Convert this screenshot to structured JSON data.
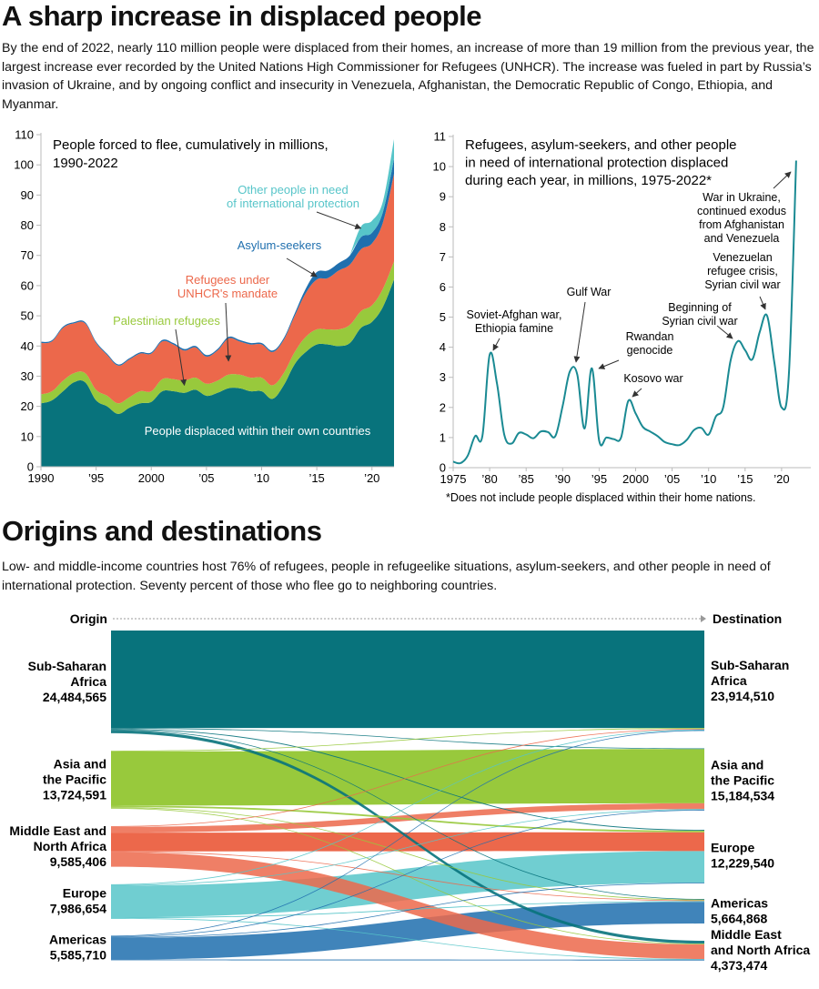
{
  "page": {
    "title": "A sharp increase in displaced people",
    "intro": "By the end of 2022, nearly 110 million people were displaced from their homes, an increase of more than 19 million from the previous year, the largest increase ever recorded by the United Nations High Commissioner for Refugees (UNHCR). The increase was fueled in part by Russia’s invasion of Ukraine, and by ongoing conflict and insecurity in Venezuela, Afghanistan, the Democratic Republic of  Congo, Ethiopia, and Myanmar.",
    "section2_title": "Origins and destinations",
    "section2_intro": "Low- and middle-income countries host 76% of refugees, people in refugeelike situations, asylum-seekers, and other people in need of international protection. Seventy percent of those who flee go to neighboring countries."
  },
  "colors": {
    "teal": "#08737c",
    "green": "#98c93c",
    "orange": "#ec684b",
    "blue": "#1f6fae",
    "cyan": "#57c5c9",
    "line": "#1a8a93",
    "axis": "#bbbbbb",
    "arrow": "#333333"
  },
  "chart_data": [
    {
      "type": "area",
      "stacked": true,
      "title": "People forced to flee, cumulatively in millions, 1990-2022",
      "title_lines": [
        "People forced to flee, cumulatively in millions,",
        "1990-2022"
      ],
      "xlabel": "",
      "ylabel": "",
      "xlim": [
        1990,
        2022
      ],
      "ylim": [
        0,
        110
      ],
      "yticks": [
        0,
        10,
        20,
        30,
        40,
        50,
        60,
        70,
        80,
        90,
        100,
        110
      ],
      "xticks": [
        1990,
        1995,
        2000,
        2005,
        2010,
        2015,
        2020
      ],
      "xtick_labels": [
        "1990",
        "’95",
        "2000",
        "’05",
        "’10",
        "’15",
        "’20"
      ],
      "grid": false,
      "x": [
        1990,
        1991,
        1992,
        1993,
        1994,
        1995,
        1996,
        1997,
        1998,
        1999,
        2000,
        2001,
        2002,
        2003,
        2004,
        2005,
        2006,
        2007,
        2008,
        2009,
        2010,
        2011,
        2012,
        2013,
        2014,
        2015,
        2016,
        2017,
        2018,
        2019,
        2020,
        2021,
        2022
      ],
      "series": [
        {
          "name": "People displaced within their own countries",
          "color_key": "teal",
          "values": [
            21,
            22,
            25,
            28,
            28,
            22,
            20,
            17.5,
            19.5,
            21,
            21.5,
            25,
            25,
            24.5,
            25.5,
            23.5,
            24.5,
            26,
            26,
            25,
            25,
            22.5,
            27,
            34,
            38,
            40.5,
            40.5,
            40,
            41,
            46,
            48,
            53,
            62
          ]
        },
        {
          "name": "Palestinian refugees",
          "color_key": "green",
          "values": [
            3,
            3,
            3.5,
            3,
            3,
            3.5,
            3.5,
            3.5,
            3.5,
            4,
            3.5,
            4,
            4,
            4,
            4,
            4,
            4,
            4.5,
            4.5,
            4.5,
            4.5,
            4.5,
            4,
            4,
            5,
            5,
            5,
            5.5,
            6,
            5.5,
            5.5,
            6,
            6
          ]
        },
        {
          "name": "Refugees under UNHCR's mandate",
          "color_key": "orange",
          "values": [
            17,
            16.5,
            17.5,
            16.5,
            16.5,
            15.5,
            13.5,
            12.5,
            12.5,
            12.5,
            12.5,
            12.5,
            11.5,
            10,
            10,
            9,
            10,
            12,
            11,
            11,
            11,
            11,
            11,
            12,
            14.5,
            16.5,
            17,
            19.5,
            20,
            20.5,
            20.5,
            22,
            29
          ]
        },
        {
          "name": "Asylum-seekers",
          "color_key": "blue",
          "values": [
            0.4,
            0.4,
            0.4,
            0.4,
            0.4,
            0.4,
            0.4,
            0.4,
            0.4,
            0.4,
            0.4,
            0.5,
            0.5,
            0.5,
            0.5,
            0.5,
            0.5,
            0.5,
            0.5,
            0.5,
            0.5,
            0.5,
            0.6,
            0.8,
            1.5,
            2.5,
            2.5,
            2.5,
            3,
            4,
            3.5,
            3.5,
            5
          ]
        },
        {
          "name": "Other people in need of international protection",
          "color_key": "cyan",
          "values": [
            0,
            0,
            0,
            0,
            0,
            0,
            0,
            0,
            0,
            0,
            0,
            0,
            0,
            0,
            0,
            0,
            0,
            0,
            0,
            0,
            0,
            0,
            0,
            0,
            0,
            0,
            0,
            0,
            0,
            3.5,
            4,
            3.5,
            6.5
          ]
        }
      ],
      "annotations": [
        {
          "text": [
            "Other people in need",
            "of international protection"
          ],
          "color_key": "cyan",
          "target": [
            2019,
            79
          ]
        },
        {
          "text": [
            "Asylum-seekers"
          ],
          "color_key": "blue",
          "target": [
            2015,
            63
          ]
        },
        {
          "text": [
            "Refugees under",
            "UNHCR's mandate"
          ],
          "color_key": "orange",
          "target": [
            2007,
            35
          ]
        },
        {
          "text": [
            "Palestinian refugees"
          ],
          "color_key": "green",
          "target": [
            2003,
            27
          ]
        },
        {
          "text": [
            "People displaced within their own countries"
          ],
          "color": "#ffffff",
          "target": null
        }
      ]
    },
    {
      "type": "line",
      "title": "Refugees, asylum-seekers, and other people in need of international protection displaced during each year, in millions, 1975-2022*",
      "title_lines": [
        "Refugees, asylum-seekers, and other people",
        "in need of international protection displaced",
        "during each year, in millions, 1975-2022*"
      ],
      "footnote": "*Does not include people displaced within their home nations.",
      "xlim": [
        1975,
        2024
      ],
      "ylim": [
        0,
        11
      ],
      "yticks": [
        0,
        1,
        2,
        3,
        4,
        5,
        6,
        7,
        8,
        9,
        10,
        11
      ],
      "xticks": [
        1975,
        1980,
        1985,
        1990,
        1995,
        2000,
        2005,
        2010,
        2015,
        2020
      ],
      "xtick_labels": [
        "1975",
        "’80",
        "’85",
        "’90",
        "’95",
        "2000",
        "’05",
        "’10",
        "’15",
        "’20"
      ],
      "grid": false,
      "x": [
        1975,
        1976,
        1977,
        1978,
        1979,
        1980,
        1981,
        1982,
        1983,
        1984,
        1985,
        1986,
        1987,
        1988,
        1989,
        1990,
        1991,
        1992,
        1993,
        1994,
        1995,
        1996,
        1997,
        1998,
        1999,
        2000,
        2001,
        2002,
        2003,
        2004,
        2005,
        2006,
        2007,
        2008,
        2009,
        2010,
        2011,
        2012,
        2013,
        2014,
        2015,
        2016,
        2017,
        2018,
        2019,
        2020,
        2021,
        2022
      ],
      "values": [
        0.2,
        0.15,
        0.4,
        1.05,
        1.05,
        3.75,
        2.8,
        1.1,
        0.8,
        1.15,
        1.1,
        0.98,
        1.2,
        1.18,
        1.05,
        2.05,
        3.2,
        3.1,
        1.3,
        3.3,
        0.9,
        1.0,
        0.95,
        1.0,
        2.22,
        1.8,
        1.35,
        1.2,
        1.05,
        0.85,
        0.78,
        0.75,
        0.92,
        1.25,
        1.32,
        1.1,
        1.7,
        2.0,
        3.55,
        4.2,
        3.9,
        3.6,
        4.5,
        5.05,
        3.5,
        2.0,
        3.1,
        10.2
      ],
      "annotations": [
        {
          "text": [
            "Soviet-Afghan war,",
            "Ethiopia famine"
          ],
          "target": [
            1980,
            3.75
          ]
        },
        {
          "text": [
            "Gulf War"
          ],
          "target": [
            1992,
            3.2
          ]
        },
        {
          "text": [
            "Rwandan",
            "genocide"
          ],
          "target": [
            1994,
            3.3
          ]
        },
        {
          "text": [
            "Kosovo war"
          ],
          "target": [
            1999.5,
            2.2
          ]
        },
        {
          "text": [
            "Beginning of",
            "Syrian civil war"
          ],
          "target": [
            2014,
            4.2
          ]
        },
        {
          "text": [
            "Venezuelan",
            "refugee crisis,",
            "Syrian civil war"
          ],
          "target": [
            2018,
            5.05
          ]
        },
        {
          "text": [
            "War in Ukraine,",
            "continued exodus",
            "from Afghanistan",
            "and Venezuela"
          ],
          "target": [
            2022,
            10.2
          ]
        }
      ]
    },
    {
      "type": "sankey",
      "left_header": "Origin",
      "right_header": "Destination",
      "origins": [
        {
          "name": [
            "Sub-Saharan",
            "Africa"
          ],
          "value": 24484565,
          "value_label": "24,484,565",
          "color_key": "teal"
        },
        {
          "name": [
            "Asia and",
            "the Pacific"
          ],
          "value": 13724591,
          "value_label": "13,724,591",
          "color_key": "green"
        },
        {
          "name": [
            "Middle East and",
            "North Africa"
          ],
          "value": 9585406,
          "value_label": "9,585,406",
          "color_key": "orange"
        },
        {
          "name": [
            "Europe"
          ],
          "value": 7986654,
          "value_label": "7,986,654",
          "color_key": "cyan"
        },
        {
          "name": [
            "Americas"
          ],
          "value": 5585710,
          "value_label": "5,585,710",
          "color_key": "blue"
        }
      ],
      "destinations": [
        {
          "name": [
            "Sub-Saharan",
            "Africa"
          ],
          "value": 23914510,
          "value_label": "23,914,510"
        },
        {
          "name": [
            "Asia and",
            "the Pacific"
          ],
          "value": 15184534,
          "value_label": "15,184,534"
        },
        {
          "name": [
            "Europe"
          ],
          "value": 12229540,
          "value_label": "12,229,540"
        },
        {
          "name": [
            "Americas"
          ],
          "value": 5664868,
          "value_label": "5,664,868"
        },
        {
          "name": [
            "Middle East",
            "and North Africa"
          ],
          "value": 4373474,
          "value_label": "4,373,474"
        }
      ],
      "flows_millions": [
        {
          "from": 0,
          "to": 0,
          "value": 23.4
        },
        {
          "from": 0,
          "to": 1,
          "value": 0.1
        },
        {
          "from": 0,
          "to": 2,
          "value": 0.2
        },
        {
          "from": 0,
          "to": 3,
          "value": 0.1
        },
        {
          "from": 0,
          "to": 4,
          "value": 0.7
        },
        {
          "from": 1,
          "to": 0,
          "value": 0.1
        },
        {
          "from": 1,
          "to": 1,
          "value": 13.0
        },
        {
          "from": 1,
          "to": 2,
          "value": 0.4
        },
        {
          "from": 1,
          "to": 3,
          "value": 0.1
        },
        {
          "from": 1,
          "to": 4,
          "value": 0.1
        },
        {
          "from": 2,
          "to": 0,
          "value": 0.1
        },
        {
          "from": 2,
          "to": 1,
          "value": 1.4
        },
        {
          "from": 2,
          "to": 2,
          "value": 4.5
        },
        {
          "from": 2,
          "to": 3,
          "value": 0.1
        },
        {
          "from": 2,
          "to": 4,
          "value": 3.5
        },
        {
          "from": 3,
          "to": 0,
          "value": 0.05
        },
        {
          "from": 3,
          "to": 1,
          "value": 0.1
        },
        {
          "from": 3,
          "to": 2,
          "value": 7.6
        },
        {
          "from": 3,
          "to": 3,
          "value": 0.1
        },
        {
          "from": 3,
          "to": 4,
          "value": 0.1
        },
        {
          "from": 4,
          "to": 0,
          "value": 0.05
        },
        {
          "from": 4,
          "to": 1,
          "value": 0.1
        },
        {
          "from": 4,
          "to": 2,
          "value": 0.1
        },
        {
          "from": 4,
          "to": 3,
          "value": 5.2
        },
        {
          "from": 4,
          "to": 4,
          "value": 0.05
        }
      ]
    }
  ]
}
